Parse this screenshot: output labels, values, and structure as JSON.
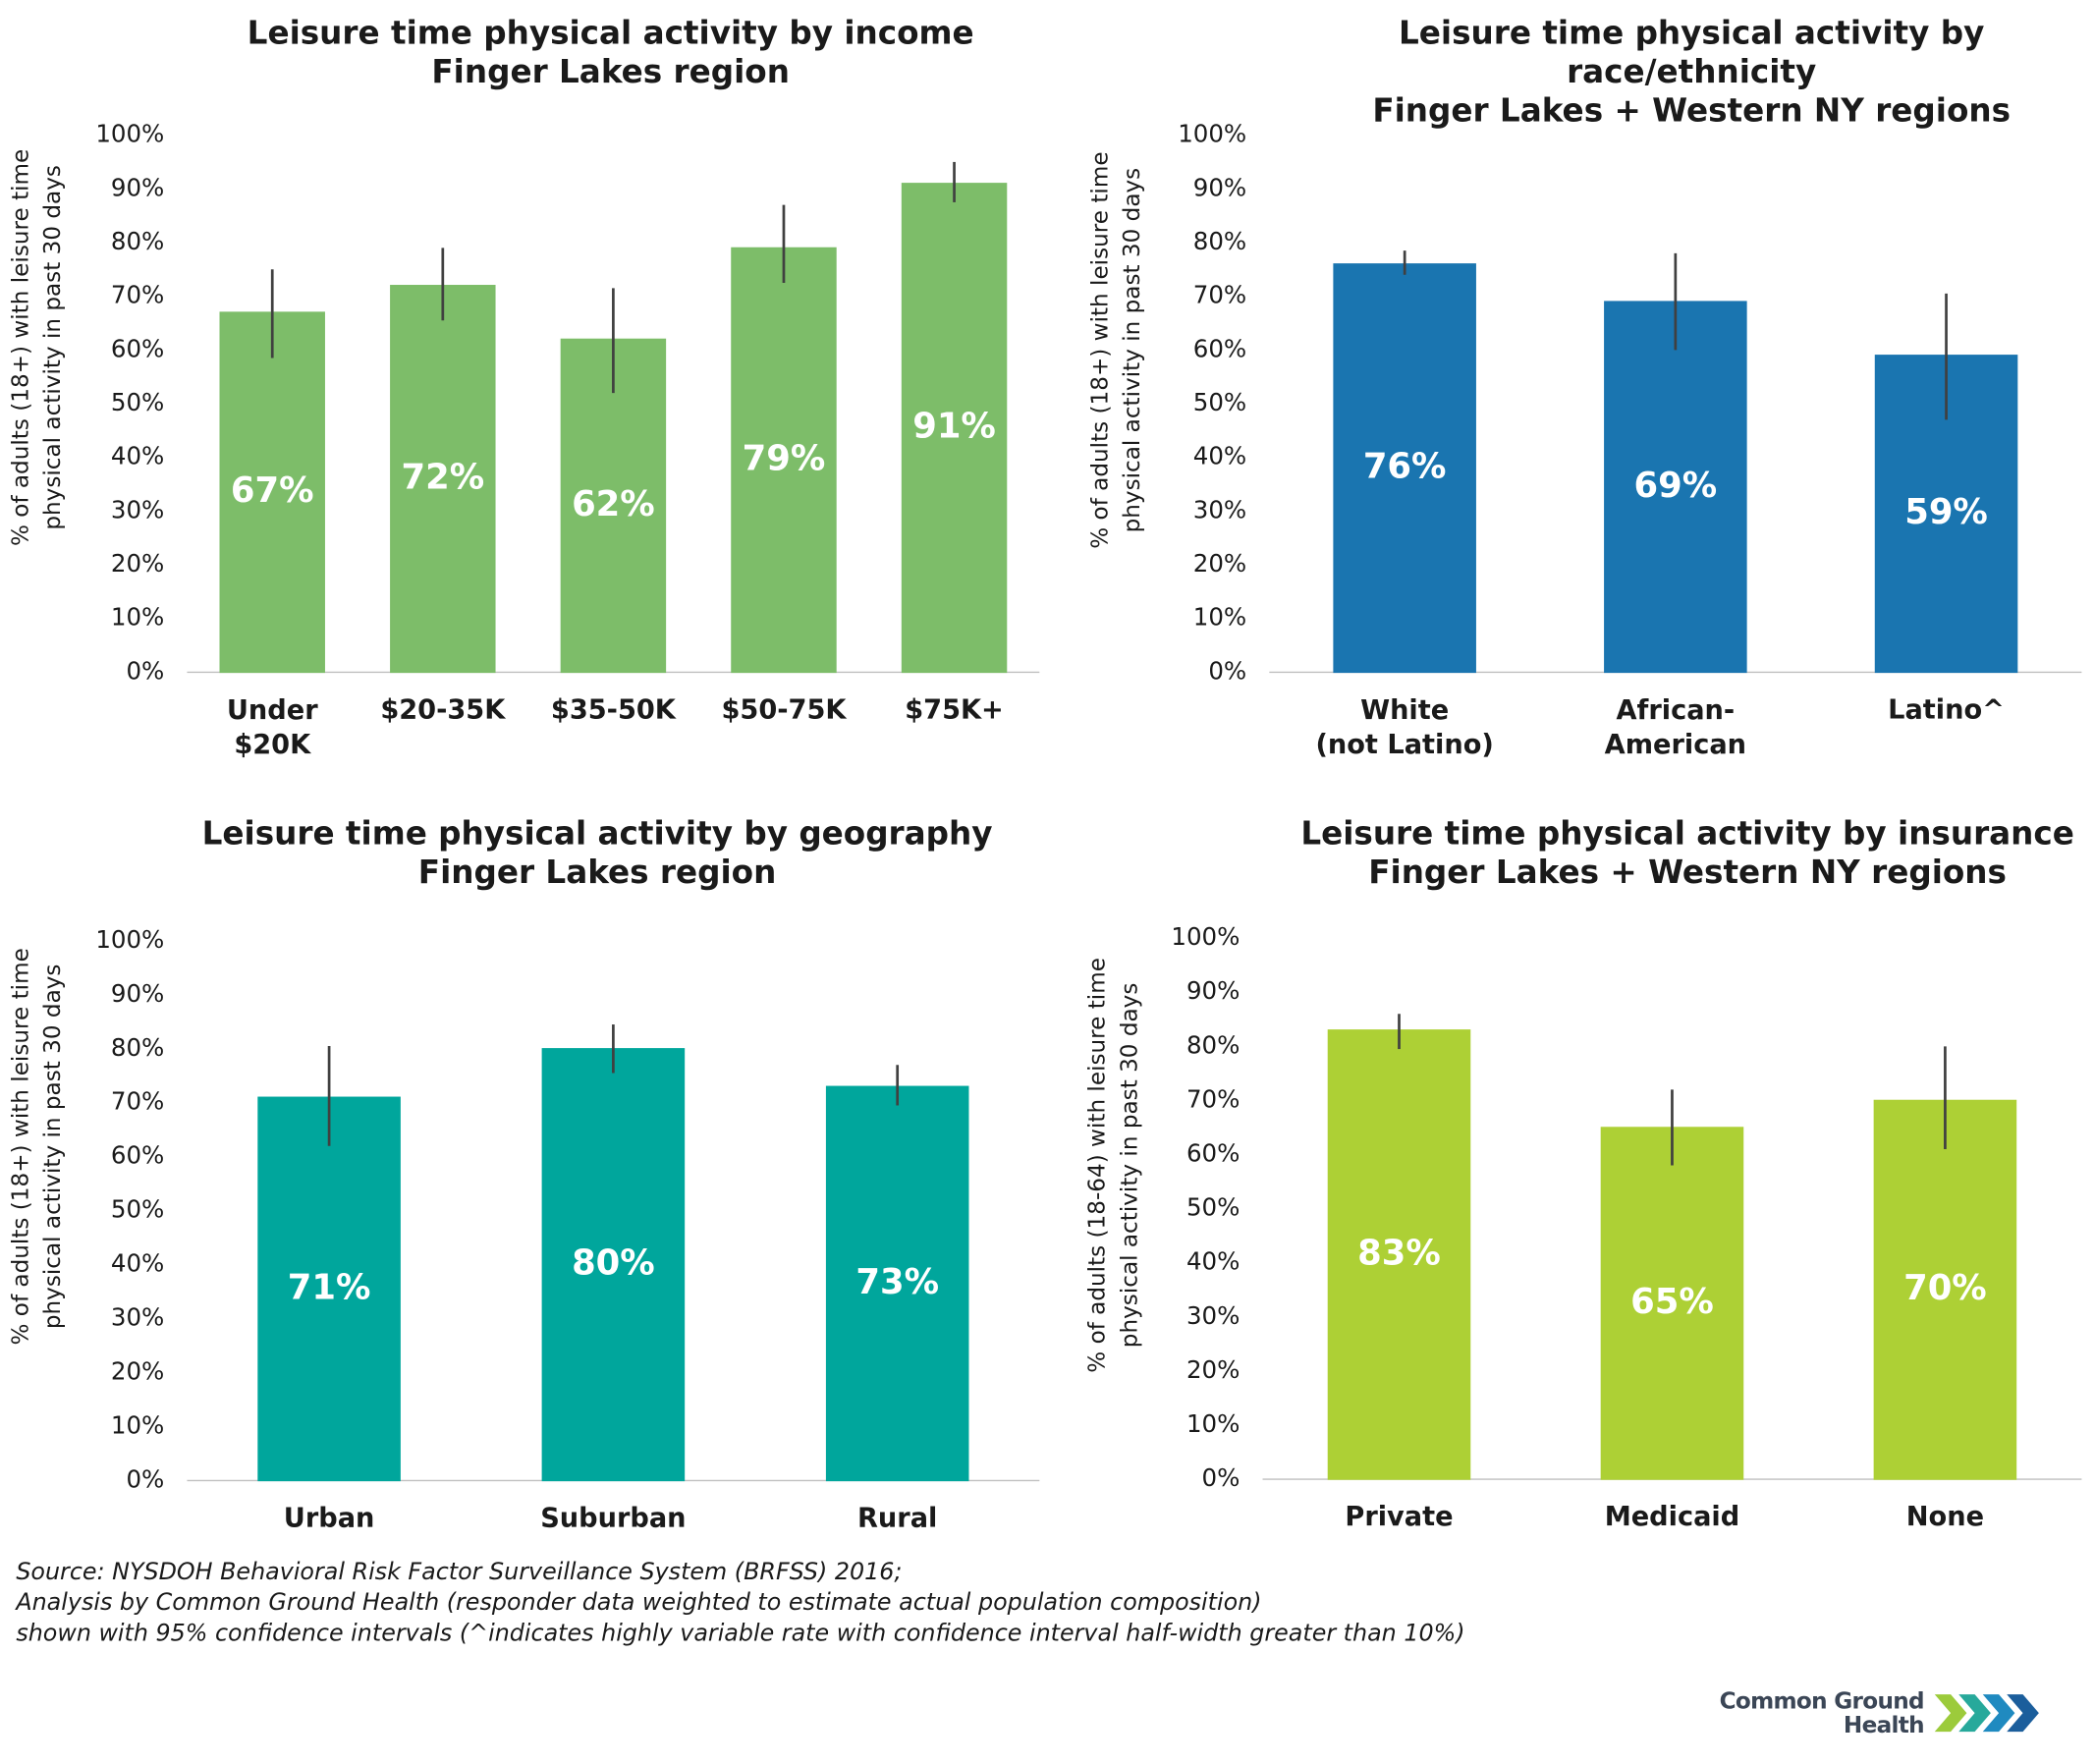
{
  "chart_data": [
    {
      "type": "bar",
      "title": [
        "Leisure time physical activity by income",
        "Finger Lakes region"
      ],
      "y_label": [
        "% of adults (18+) with leisure time",
        "physical activity in past 30 days"
      ],
      "categories": [
        "Under\n$20K",
        "$20-35K",
        "$35-50K",
        "$50-75K",
        "$75K+"
      ],
      "values": [
        67,
        72,
        62,
        79,
        91
      ],
      "value_labels": [
        "67%",
        "72%",
        "62%",
        "79%",
        "91%"
      ],
      "ci_low": [
        58.5,
        65.5,
        52,
        72.5,
        87.5
      ],
      "ci_high": [
        75,
        79,
        71.5,
        87,
        95
      ],
      "color": "#7dbd69",
      "ylim": [
        0,
        100
      ],
      "yticks": [
        {
          "value": 0,
          "label": "0%"
        },
        {
          "value": 10,
          "label": "10%"
        },
        {
          "value": 20,
          "label": "20%"
        },
        {
          "value": 30,
          "label": "30%"
        },
        {
          "value": 40,
          "label": "40%"
        },
        {
          "value": 50,
          "label": "50%"
        },
        {
          "value": 60,
          "label": "60%"
        },
        {
          "value": 70,
          "label": "70%"
        },
        {
          "value": 80,
          "label": "80%"
        },
        {
          "value": 90,
          "label": "90%"
        },
        {
          "value": 100,
          "label": "100%"
        }
      ]
    },
    {
      "type": "bar",
      "title": [
        "Leisure time physical activity by",
        "race/ethnicity",
        "Finger Lakes + Western NY regions"
      ],
      "y_label": [
        "% of adults (18+) with leisure time",
        "physical activity in past 30 days"
      ],
      "categories": [
        "White\n(not Latino)",
        "African-\nAmerican",
        "Latino^"
      ],
      "values": [
        76,
        69,
        59
      ],
      "value_labels": [
        "76%",
        "69%",
        "59%"
      ],
      "ci_low": [
        74,
        60,
        47
      ],
      "ci_high": [
        78.5,
        78,
        70.5
      ],
      "color": "#1a75b0",
      "ylim": [
        0,
        100
      ],
      "yticks": [
        {
          "value": 0,
          "label": "0%"
        },
        {
          "value": 10,
          "label": "10%"
        },
        {
          "value": 20,
          "label": "20%"
        },
        {
          "value": 30,
          "label": "30%"
        },
        {
          "value": 40,
          "label": "40%"
        },
        {
          "value": 50,
          "label": "50%"
        },
        {
          "value": 60,
          "label": "60%"
        },
        {
          "value": 70,
          "label": "70%"
        },
        {
          "value": 80,
          "label": "80%"
        },
        {
          "value": 90,
          "label": "90%"
        },
        {
          "value": 100,
          "label": "100%"
        }
      ]
    },
    {
      "type": "bar",
      "title": [
        "Leisure time physical activity by geography",
        "Finger Lakes region"
      ],
      "y_label": [
        "% of adults (18+) with leisure time",
        "physical activity in past 30 days"
      ],
      "categories": [
        "Urban",
        "Suburban",
        "Rural"
      ],
      "values": [
        71,
        80,
        73
      ],
      "value_labels": [
        "71%",
        "80%",
        "73%"
      ],
      "ci_low": [
        62,
        75.5,
        69.5
      ],
      "ci_high": [
        80.5,
        84.5,
        77
      ],
      "color": "#00a69c",
      "ylim": [
        0,
        100
      ],
      "yticks": [
        {
          "value": 0,
          "label": "0%"
        },
        {
          "value": 10,
          "label": "10%"
        },
        {
          "value": 20,
          "label": "20%"
        },
        {
          "value": 30,
          "label": "30%"
        },
        {
          "value": 40,
          "label": "40%"
        },
        {
          "value": 50,
          "label": "50%"
        },
        {
          "value": 60,
          "label": "60%"
        },
        {
          "value": 70,
          "label": "70%"
        },
        {
          "value": 80,
          "label": "80%"
        },
        {
          "value": 90,
          "label": "90%"
        },
        {
          "value": 100,
          "label": "100%"
        }
      ]
    },
    {
      "type": "bar",
      "title": [
        "Leisure time physical activity by insurance",
        "Finger Lakes + Western NY regions"
      ],
      "y_label": [
        "% of adults (18-64) with leisure time",
        "physical activity in past 30 days"
      ],
      "categories": [
        "Private",
        "Medicaid",
        "None"
      ],
      "values": [
        83,
        65,
        70
      ],
      "value_labels": [
        "83%",
        "65%",
        "70%"
      ],
      "ci_low": [
        79.5,
        58,
        61
      ],
      "ci_high": [
        86,
        72,
        80
      ],
      "color": "#add035",
      "ylim": [
        0,
        100
      ],
      "yticks": [
        {
          "value": 0,
          "label": "0%"
        },
        {
          "value": 10,
          "label": "10%"
        },
        {
          "value": 20,
          "label": "20%"
        },
        {
          "value": 30,
          "label": "30%"
        },
        {
          "value": 40,
          "label": "40%"
        },
        {
          "value": 50,
          "label": "50%"
        },
        {
          "value": 60,
          "label": "60%"
        },
        {
          "value": 70,
          "label": "70%"
        },
        {
          "value": 80,
          "label": "80%"
        },
        {
          "value": 90,
          "label": "90%"
        },
        {
          "value": 100,
          "label": "100%"
        }
      ]
    }
  ],
  "source": [
    "Source: NYSDOH Behavioral Risk Factor Surveillance System (BRFSS) 2016;",
    "Analysis by Common Ground Health (responder data weighted to estimate actual population composition)",
    "shown with 95% confidence intervals (^indicates highly variable rate with confidence interval half-width greater than 10%)"
  ],
  "logo": [
    "Common Ground",
    "Health"
  ]
}
